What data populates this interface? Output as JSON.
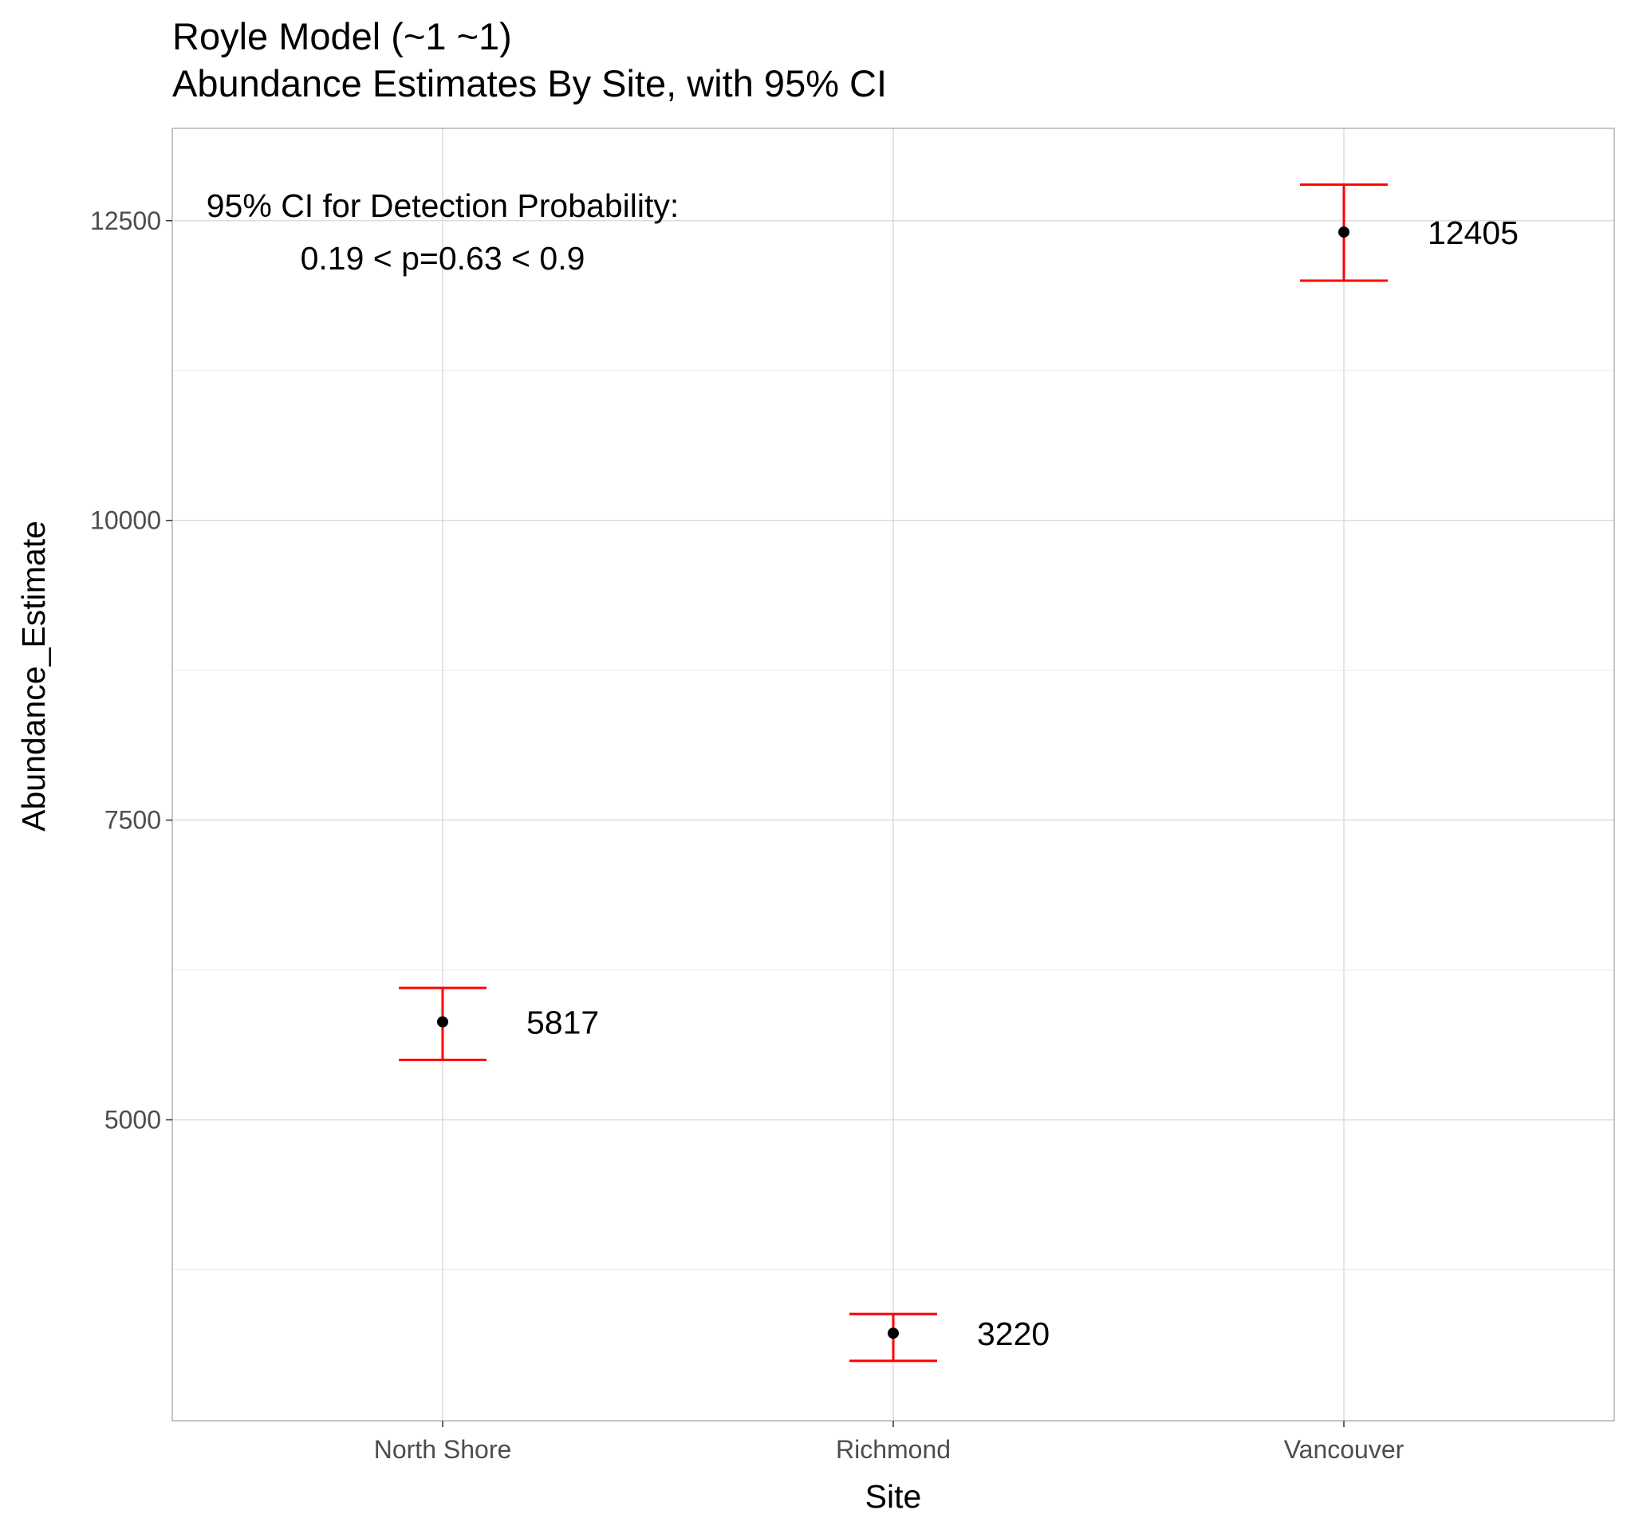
{
  "chart_data": {
    "type": "scatter",
    "title": "Royle Model (~1 ~1)",
    "subtitle": "Abundance Estimates By Site, with 95% CI",
    "xlabel": "Site",
    "ylabel": "Abundance_Estimate",
    "categories": [
      "North Shore",
      "Richmond",
      "Vancouver"
    ],
    "points": [
      {
        "site": "North Shore",
        "estimate": 5817,
        "lower": 5500,
        "upper": 6100,
        "label": "5817"
      },
      {
        "site": "Richmond",
        "estimate": 3220,
        "lower": 2990,
        "upper": 3380,
        "label": "3220"
      },
      {
        "site": "Vancouver",
        "estimate": 12405,
        "lower": 12000,
        "upper": 12800,
        "label": "12405"
      }
    ],
    "ylim": [
      2490,
      13270
    ],
    "yticks": [
      5000,
      7500,
      10000,
      12500
    ],
    "ytick_labels": [
      "5000",
      "7500",
      "10000",
      "12500"
    ],
    "grid": true,
    "errorbar_color": "#ff0000",
    "point_color": "#000000",
    "annotation": {
      "line1": "95% CI for Detection Probability:",
      "line2": "0.19 < p=0.63 < 0.9",
      "anchor_x_category": "North Shore",
      "y": 12400
    }
  }
}
